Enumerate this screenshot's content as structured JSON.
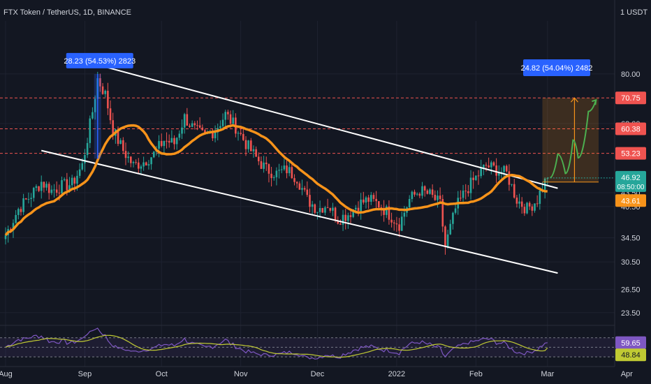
{
  "header": {
    "symbol_title": "FTX Token / TetherUS, 1D, BINANCE",
    "currency": "1 USDT"
  },
  "colors": {
    "background": "#131722",
    "up": "#26a69a",
    "down": "#ef5350",
    "ma": "#f7931a",
    "channel": "#ffffff",
    "rsi": "#7e57c2",
    "rsi_ma": "#c0ca33",
    "level": "#ef5350",
    "label_blue": "#2962ff",
    "projection": "#4caf50"
  },
  "chart_data": {
    "type": "candlestick",
    "title": "FTX Token / TetherUS, 1D, BINANCE",
    "y_scale": "log",
    "ylim": [
      22.5,
      105
    ],
    "y_ticks": [
      "80.00",
      "62.00",
      "43.50",
      "40.50",
      "34.50",
      "30.50",
      "26.50",
      "23.50"
    ],
    "x_ticks": [
      "Aug",
      "Sep",
      "Oct",
      "Nov",
      "Dec",
      "2022",
      "Feb",
      "Mar",
      "Apr"
    ],
    "xlim": [
      0,
      232
    ],
    "x_tick_days": [
      0,
      31,
      61,
      92,
      122,
      153,
      184,
      212,
      243
    ],
    "price_keypoints": [
      [
        0,
        35
      ],
      [
        5,
        40
      ],
      [
        10,
        43
      ],
      [
        14,
        46
      ],
      [
        18,
        44
      ],
      [
        22,
        45
      ],
      [
        26,
        45.5
      ],
      [
        30,
        50
      ],
      [
        34,
        66
      ],
      [
        36,
        78
      ],
      [
        39,
        72
      ],
      [
        42,
        60
      ],
      [
        46,
        54
      ],
      [
        50,
        50
      ],
      [
        54,
        51
      ],
      [
        58,
        53
      ],
      [
        62,
        57
      ],
      [
        66,
        56
      ],
      [
        70,
        64
      ],
      [
        74,
        60
      ],
      [
        78,
        58
      ],
      [
        82,
        60
      ],
      [
        86,
        65
      ],
      [
        90,
        61
      ],
      [
        94,
        56
      ],
      [
        98,
        52
      ],
      [
        102,
        49
      ],
      [
        106,
        48
      ],
      [
        110,
        49
      ],
      [
        114,
        47
      ],
      [
        118,
        42
      ],
      [
        122,
        40
      ],
      [
        126,
        41
      ],
      [
        130,
        38
      ],
      [
        134,
        39
      ],
      [
        138,
        41
      ],
      [
        142,
        42
      ],
      [
        146,
        41
      ],
      [
        150,
        39
      ],
      [
        154,
        37
      ],
      [
        158,
        42
      ],
      [
        162,
        44
      ],
      [
        166,
        43
      ],
      [
        170,
        41
      ],
      [
        172,
        33
      ],
      [
        176,
        40
      ],
      [
        180,
        44
      ],
      [
        184,
        47
      ],
      [
        188,
        50
      ],
      [
        192,
        49
      ],
      [
        196,
        48
      ],
      [
        200,
        42
      ],
      [
        204,
        40
      ],
      [
        208,
        42
      ],
      [
        210,
        45
      ],
      [
        212,
        47
      ]
    ],
    "last_price": 46.92,
    "countdown": "08:50:00",
    "moving_average": {
      "last_value": 43.61
    },
    "levels": [
      {
        "value": 70.75,
        "label": "70.75"
      },
      {
        "value": 60.38,
        "label": "60.38"
      },
      {
        "value": 53.23,
        "label": "53.23"
      }
    ],
    "channel": {
      "upper": [
        [
          32,
          85
        ],
        [
          216,
          44.5
        ]
      ],
      "lower": [
        [
          14,
          54
        ],
        [
          216,
          28.8
        ]
      ]
    },
    "annotations": [
      {
        "text": "28.23 (54.53%) 2823",
        "from": [
          36,
          51.8
        ],
        "to": [
          36,
          80
        ]
      },
      {
        "text": "24.82 (54.04%) 2482",
        "from": [
          216,
          45.93
        ],
        "to": [
          216,
          70.75
        ]
      }
    ],
    "projection_path": [
      [
        213,
        47
      ],
      [
        216,
        53
      ],
      [
        219,
        48
      ],
      [
        222,
        57
      ],
      [
        224,
        52
      ],
      [
        228,
        66
      ],
      [
        231,
        70
      ]
    ],
    "rsi": {
      "current": 59.65,
      "ma": 48.84,
      "label": "59.65",
      "ma_label": "48.84"
    }
  }
}
